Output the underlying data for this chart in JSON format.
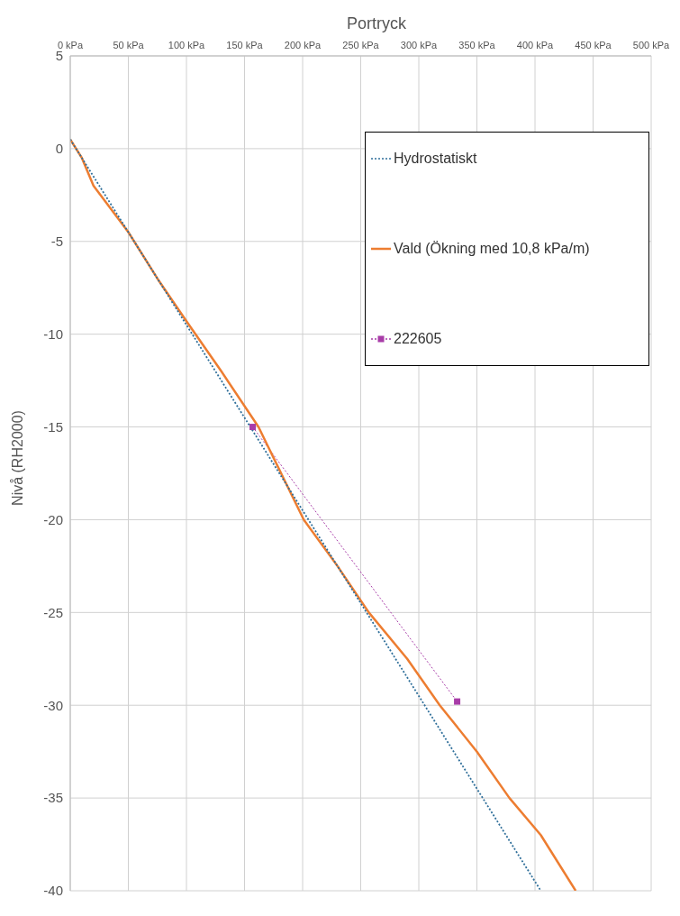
{
  "chart_data": {
    "type": "line",
    "xlabel": "Portryck",
    "ylabel": "Nivå (RH2000)",
    "xlim": [
      0,
      500
    ],
    "ylim": [
      -40,
      5
    ],
    "xticks": [
      {
        "value": 0,
        "label": "0 kPa"
      },
      {
        "value": 50,
        "label": "50 kPa"
      },
      {
        "value": 100,
        "label": "100 kPa"
      },
      {
        "value": 150,
        "label": "150 kPa"
      },
      {
        "value": 200,
        "label": "200 kPa"
      },
      {
        "value": 250,
        "label": "250 kPa"
      },
      {
        "value": 300,
        "label": "300 kPa"
      },
      {
        "value": 350,
        "label": "350 kPa"
      },
      {
        "value": 400,
        "label": "400 kPa"
      },
      {
        "value": 450,
        "label": "450 kPa"
      },
      {
        "value": 500,
        "label": "500 kPa"
      }
    ],
    "yticks": [
      5,
      0,
      -5,
      -10,
      -15,
      -20,
      -25,
      -30,
      -35,
      -40
    ],
    "grid": true,
    "legend": "top right",
    "series": [
      {
        "name": "Hydrostatiskt",
        "color": "#2f6f9a",
        "line_style": "dotted",
        "marker": "none",
        "x": [
          0,
          50,
          100,
          150,
          200,
          250,
          300,
          350,
          405
        ],
        "values": [
          0.5,
          -4.5,
          -9.5,
          -14.5,
          -19.5,
          -24.5,
          -29.5,
          -34.5,
          -40
        ]
      },
      {
        "name": "Vald (Ökning med 10,8 kPa/m)",
        "color": "#ed7d31",
        "line_style": "solid",
        "marker": "none",
        "x": [
          0,
          10,
          20,
          50,
          75,
          100,
          130,
          162,
          201,
          230,
          257,
          290,
          318,
          350,
          378,
          405,
          435
        ],
        "values": [
          0.5,
          -0.5,
          -2,
          -4.5,
          -7,
          -9.3,
          -12,
          -15,
          -20,
          -22.5,
          -25,
          -27.5,
          -30,
          -32.5,
          -35,
          -37,
          -40
        ]
      },
      {
        "name": "222605",
        "color": "#a83ca8",
        "line_style": "dotted",
        "marker": "square",
        "x": [
          157,
          333
        ],
        "values": [
          -15,
          -29.8
        ]
      }
    ]
  }
}
